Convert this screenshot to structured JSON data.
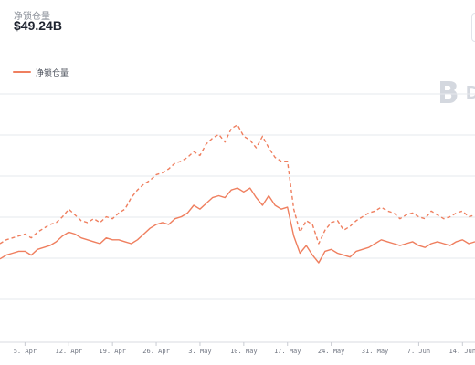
{
  "header": {
    "metric_label": "净锁仓量",
    "metric_value": "$49.24B"
  },
  "legend": {
    "label": "净锁仓量",
    "color": "#ef7f5f"
  },
  "watermark": {
    "letter": "D",
    "color": "#cfd3da"
  },
  "chart_data": {
    "type": "line",
    "title": "",
    "xlabel": "",
    "ylabel": "",
    "x_ticks": [
      "5. Apr",
      "12. Apr",
      "19. Apr",
      "26. Apr",
      "3. May",
      "10. May",
      "17. May",
      "24. May",
      "31. May",
      "7. Jun",
      "14. Jun"
    ],
    "x_tick_days": [
      4,
      11,
      18,
      25,
      32,
      39,
      46,
      53,
      60,
      67,
      74
    ],
    "x_range": [
      0,
      76
    ],
    "y_range": [
      0,
      100
    ],
    "grid": "horizontal",
    "legend_position": "top-left",
    "series": [
      {
        "name": "净锁仓量",
        "style": "solid",
        "color": "#ef7f5f",
        "x": [
          0,
          1,
          2,
          3,
          4,
          5,
          6,
          7,
          8,
          9,
          10,
          11,
          12,
          13,
          14,
          15,
          16,
          17,
          18,
          19,
          20,
          21,
          22,
          23,
          24,
          25,
          26,
          27,
          28,
          29,
          30,
          31,
          32,
          33,
          34,
          35,
          36,
          37,
          38,
          39,
          40,
          41,
          42,
          43,
          44,
          45,
          46,
          47,
          48,
          49,
          50,
          51,
          52,
          53,
          54,
          55,
          56,
          57,
          58,
          59,
          60,
          61,
          62,
          63,
          64,
          65,
          66,
          67,
          68,
          69,
          70,
          71,
          72,
          73,
          74,
          75,
          76
        ],
        "values": [
          22,
          24,
          25,
          26,
          26,
          24,
          27,
          28,
          29,
          31,
          34,
          36,
          35,
          33,
          32,
          31,
          30,
          33,
          32,
          32,
          31,
          30,
          32,
          35,
          38,
          40,
          41,
          40,
          43,
          44,
          46,
          50,
          48,
          51,
          54,
          55,
          54,
          58,
          59,
          57,
          59,
          54,
          50,
          55,
          50,
          48,
          49,
          34,
          25,
          29,
          24,
          20,
          26,
          27,
          25,
          24,
          23,
          26,
          27,
          28,
          30,
          32,
          31,
          30,
          29,
          30,
          31,
          29,
          28,
          30,
          31,
          30,
          29,
          31,
          32,
          30,
          31
        ]
      },
      {
        "name": "",
        "style": "dashed",
        "color": "#ef7f5f",
        "x": [
          0,
          1,
          2,
          3,
          4,
          5,
          6,
          7,
          8,
          9,
          10,
          11,
          12,
          13,
          14,
          15,
          16,
          17,
          18,
          19,
          20,
          21,
          22,
          23,
          24,
          25,
          26,
          27,
          28,
          29,
          30,
          31,
          32,
          33,
          34,
          35,
          36,
          37,
          38,
          39,
          40,
          41,
          42,
          43,
          44,
          45,
          46,
          47,
          48,
          49,
          50,
          51,
          52,
          53,
          54,
          55,
          56,
          57,
          58,
          59,
          60,
          61,
          62,
          63,
          64,
          65,
          66,
          67,
          68,
          69,
          70,
          71,
          72,
          73,
          74,
          75,
          76
        ],
        "values": [
          30,
          32,
          33,
          34,
          35,
          33,
          36,
          38,
          40,
          41,
          44,
          48,
          45,
          42,
          41,
          43,
          41,
          44,
          43,
          46,
          48,
          54,
          58,
          61,
          63,
          66,
          67,
          69,
          72,
          73,
          75,
          78,
          76,
          82,
          85,
          87,
          83,
          90,
          92,
          86,
          84,
          80,
          86,
          80,
          75,
          73,
          73,
          48,
          36,
          42,
          40,
          30,
          37,
          41,
          42,
          37,
          39,
          42,
          44,
          46,
          47,
          49,
          47,
          46,
          43,
          45,
          46,
          44,
          43,
          47,
          45,
          43,
          44,
          46,
          47,
          44,
          45
        ]
      }
    ]
  }
}
